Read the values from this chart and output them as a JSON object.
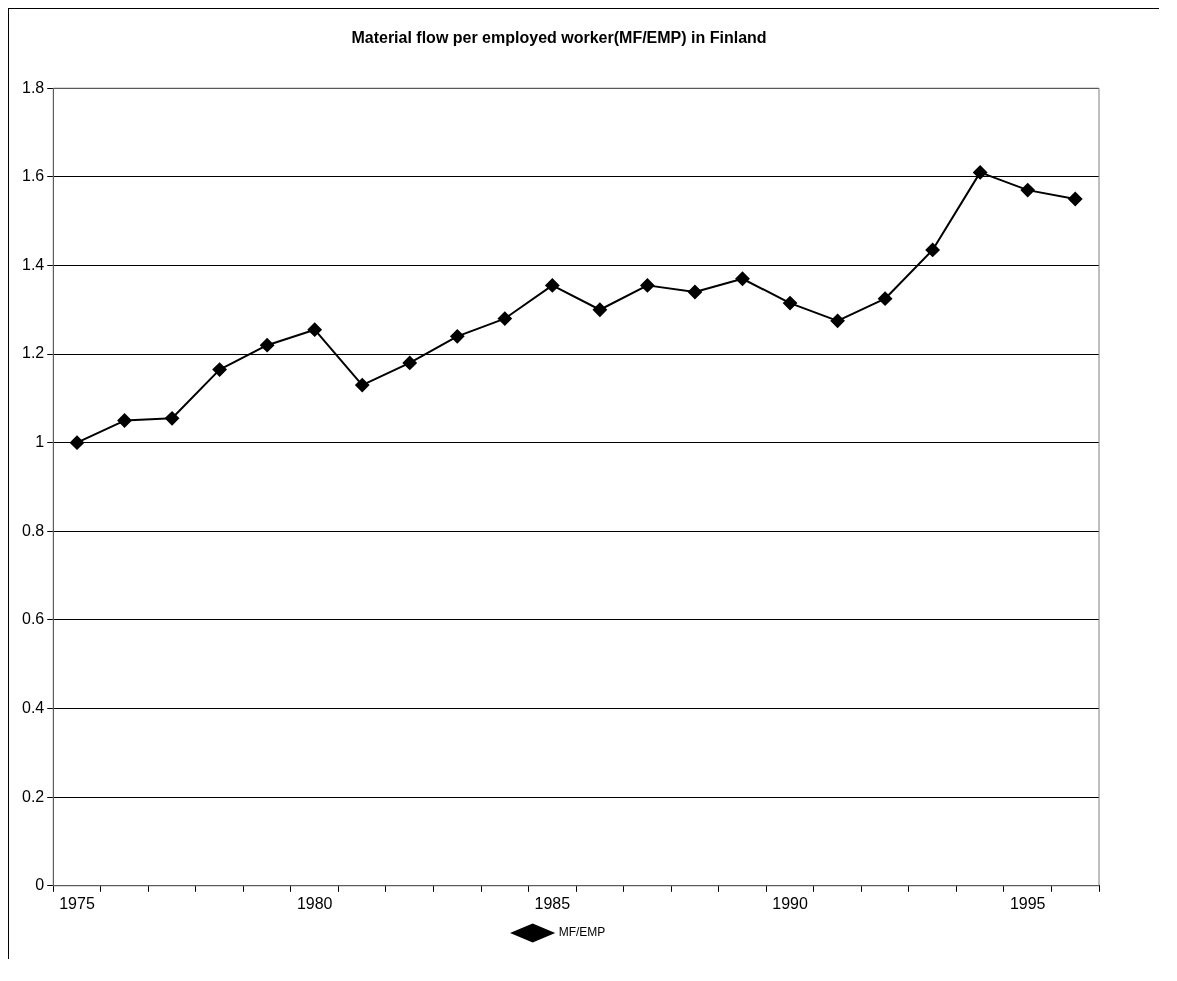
{
  "chart_data": {
    "type": "line",
    "title": "Material flow per employed worker(MF/EMP) in Finland",
    "categories": [
      "1975",
      null,
      null,
      null,
      null,
      "1980",
      null,
      null,
      null,
      null,
      "1985",
      null,
      null,
      null,
      null,
      "1990",
      null,
      null,
      null,
      null,
      "1995",
      null
    ],
    "series": [
      {
        "name": "MF/EMP",
        "color": "#000000",
        "values": [
          1.0,
          1.05,
          1.055,
          1.165,
          1.22,
          1.255,
          1.13,
          1.18,
          1.24,
          1.28,
          1.355,
          1.3,
          1.355,
          1.34,
          1.37,
          1.315,
          1.275,
          1.325,
          1.435,
          1.61,
          1.57,
          1.55
        ]
      }
    ],
    "ylim": [
      0,
      1.8
    ],
    "yticks": [
      0,
      0.2,
      0.4,
      0.6,
      0.8,
      1,
      1.2,
      1.4,
      1.6,
      1.8
    ],
    "grid": "y",
    "legend": "bottom",
    "marker": "diamond",
    "line_style": "solid"
  }
}
